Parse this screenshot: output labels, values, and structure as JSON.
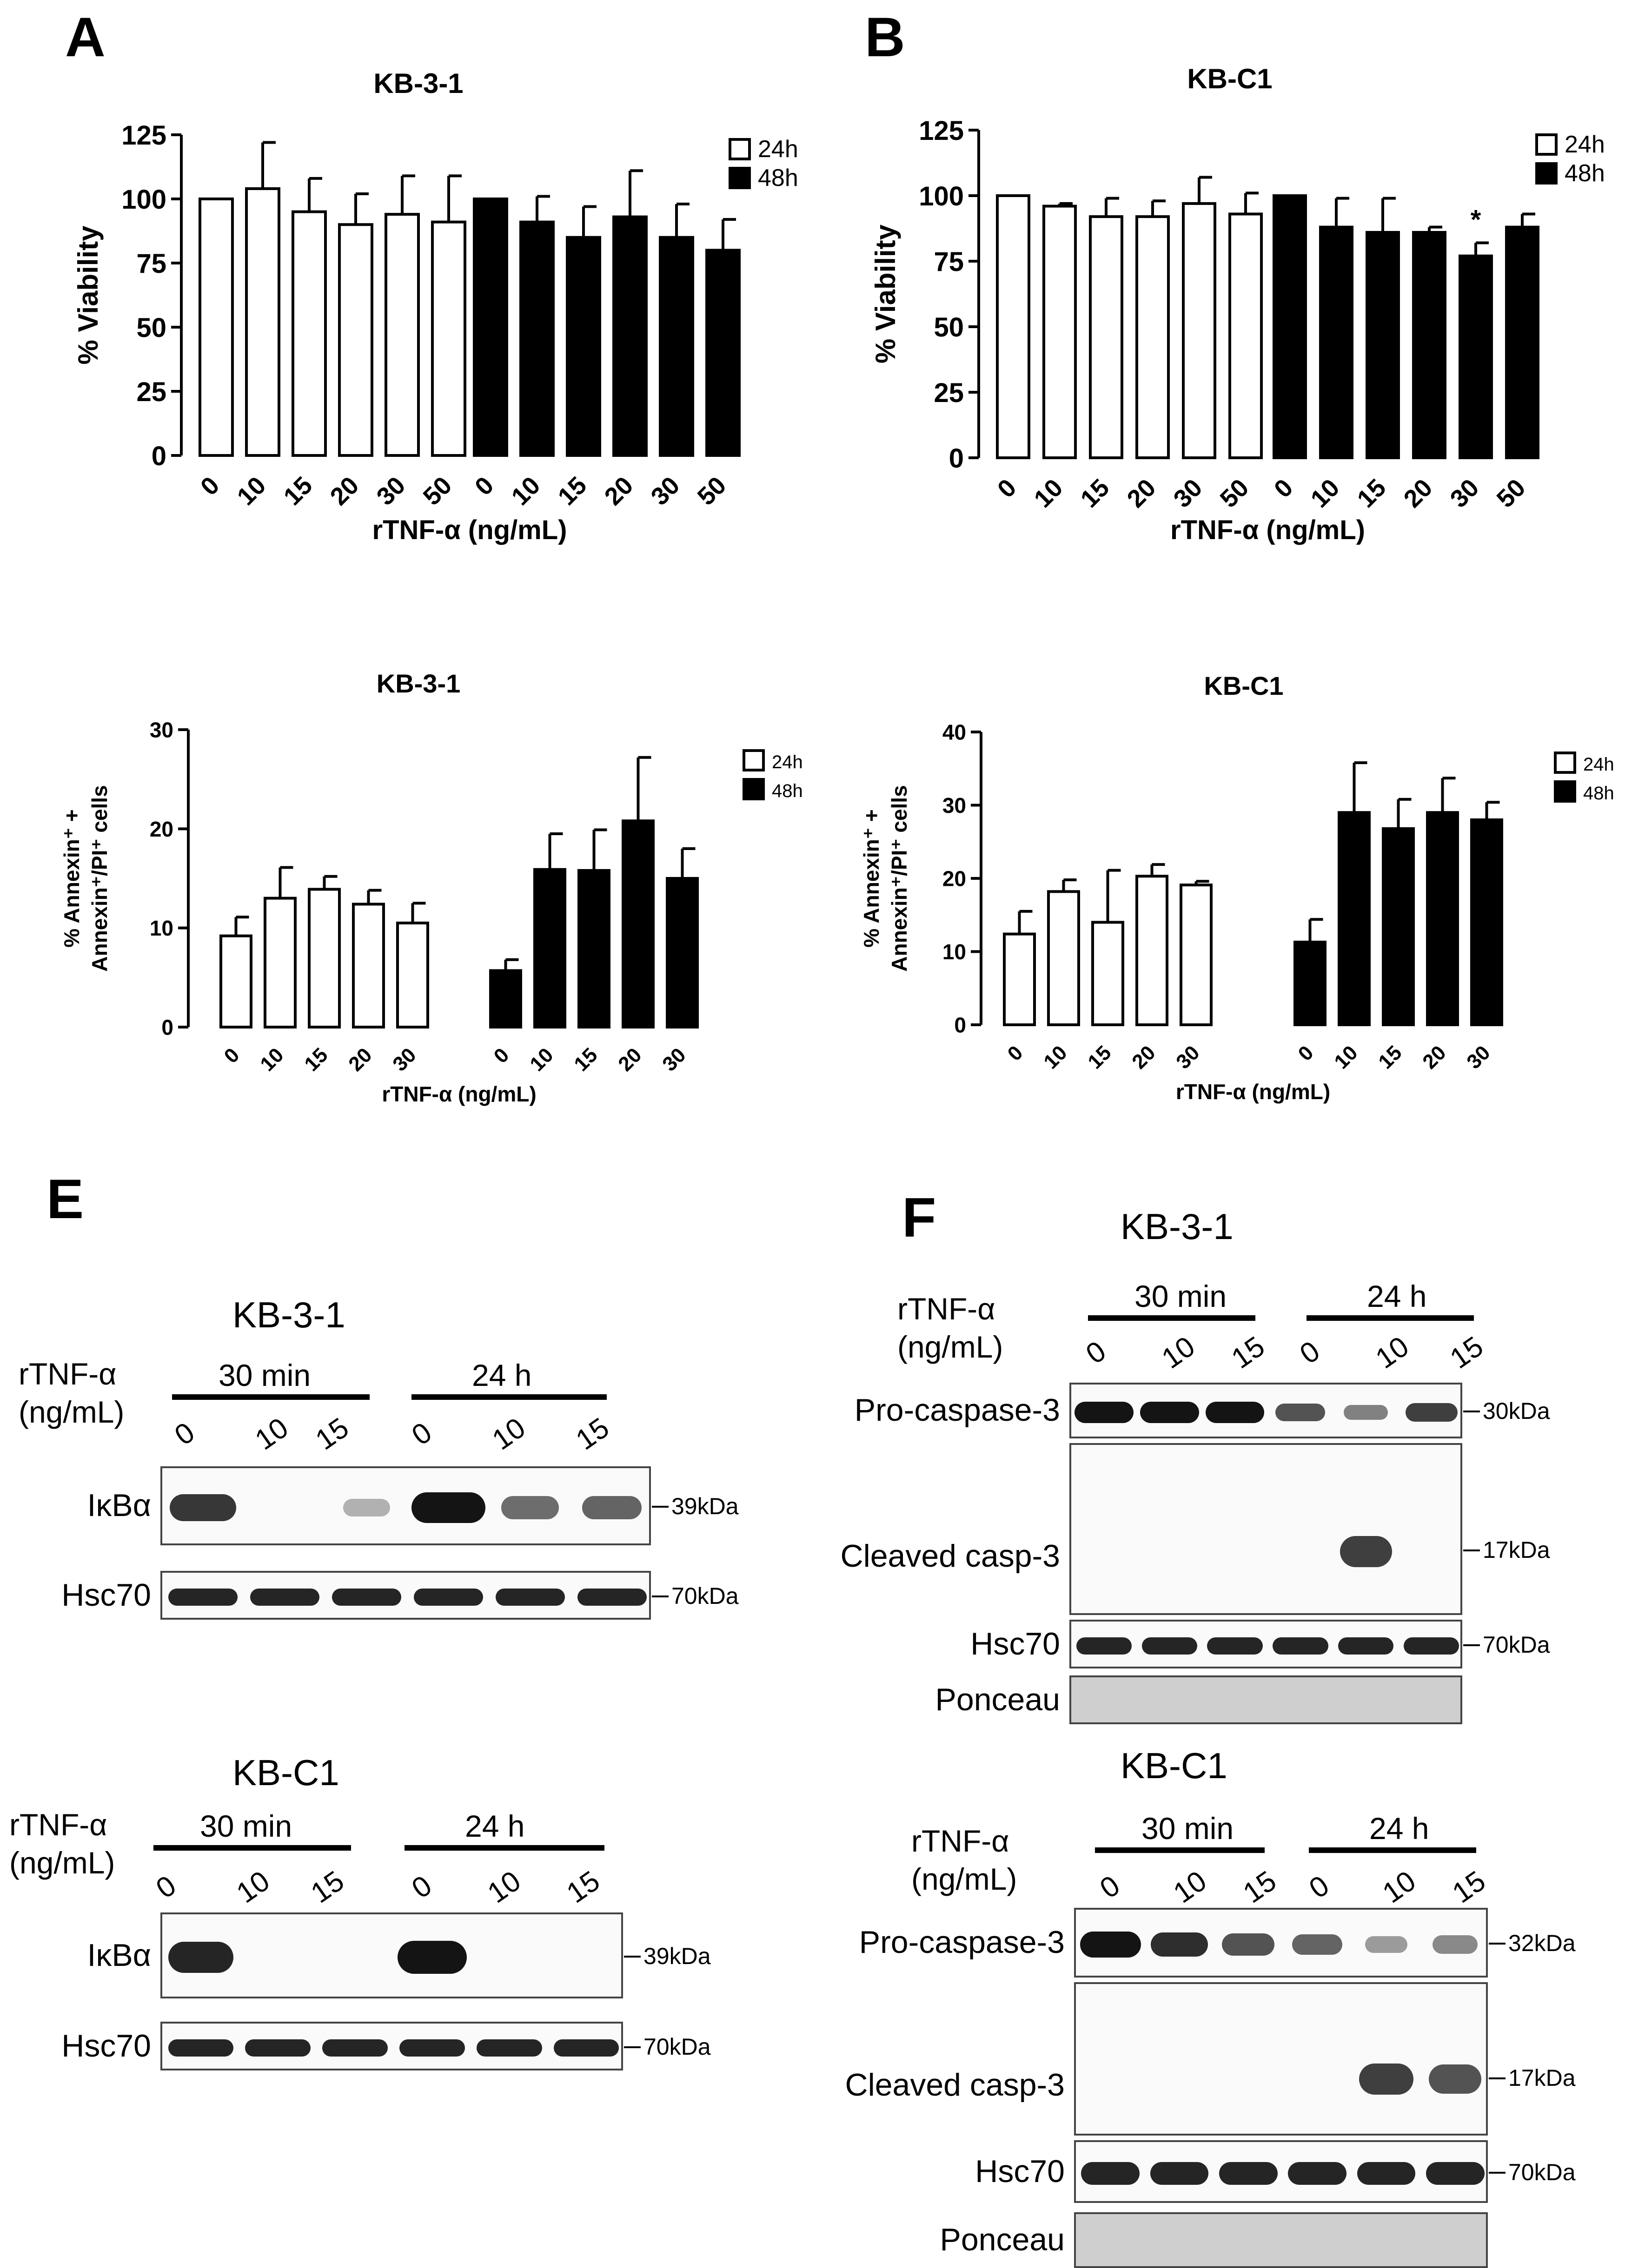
{
  "panels": [
    {
      "id": "A",
      "label": "A"
    },
    {
      "id": "B",
      "label": "B"
    },
    {
      "id": "E",
      "label": "E"
    },
    {
      "id": "F",
      "label": "F"
    }
  ],
  "chart_data": [
    {
      "type": "bar",
      "title": "KB-3-1",
      "ylabel": "% Viability",
      "xlabel": "rTNF-α (ng/mL)",
      "ylim": [
        0,
        125
      ],
      "yticks": [
        0,
        25,
        50,
        75,
        100,
        125
      ],
      "categories": [
        "0",
        "10",
        "15",
        "20",
        "30",
        "50"
      ],
      "legend_position": "top-right",
      "series": [
        {
          "name": "24h",
          "fill": "#ffffff",
          "values": [
            100,
            104,
            95,
            90,
            94,
            91
          ],
          "errors": [
            0,
            18,
            13,
            12,
            15,
            18
          ]
        },
        {
          "name": "48h",
          "fill": "#000000",
          "values": [
            100,
            91,
            85,
            93,
            85,
            80
          ],
          "errors": [
            0,
            10,
            12,
            18,
            13,
            12
          ]
        }
      ],
      "annotations": []
    },
    {
      "type": "bar",
      "title": "KB-C1",
      "ylabel": "% Viability",
      "xlabel": "rTNF-α (ng/mL)",
      "ylim": [
        0,
        125
      ],
      "yticks": [
        0,
        25,
        50,
        75,
        100,
        125
      ],
      "categories": [
        "0",
        "10",
        "15",
        "20",
        "30",
        "50"
      ],
      "legend_position": "top-right",
      "series": [
        {
          "name": "24h",
          "fill": "#ffffff",
          "values": [
            100,
            96,
            92,
            92,
            97,
            93
          ],
          "errors": [
            0,
            1,
            7,
            6,
            10,
            8
          ]
        },
        {
          "name": "48h",
          "fill": "#000000",
          "values": [
            100,
            88,
            86,
            86,
            77,
            88
          ],
          "errors": [
            0,
            11,
            13,
            2,
            5,
            5
          ]
        }
      ],
      "annotations": [
        {
          "text": "*",
          "series": 1,
          "index": 4
        }
      ]
    },
    {
      "type": "bar",
      "title": "KB-3-1",
      "ylabel_line1": "% Annexin⁺ +",
      "ylabel_line2": "Annexin⁺/PI⁺ cells",
      "xlabel": "rTNF-α (ng/mL)",
      "ylim": [
        0,
        30
      ],
      "yticks": [
        0,
        10,
        20,
        30
      ],
      "categories": [
        "0",
        "10",
        "15",
        "20",
        "30"
      ],
      "legend_position": "top-right",
      "series": [
        {
          "name": "24h",
          "fill": "#ffffff",
          "values": [
            9.2,
            13.0,
            13.9,
            12.4,
            10.5
          ],
          "errors": [
            1.9,
            3.1,
            1.3,
            1.4,
            2.0
          ]
        },
        {
          "name": "48h",
          "fill": "#000000",
          "values": [
            5.7,
            15.9,
            15.8,
            20.8,
            15.0
          ],
          "errors": [
            1.1,
            3.6,
            4.1,
            6.4,
            3.0
          ]
        }
      ],
      "annotations": []
    },
    {
      "type": "bar",
      "title": "KB-C1",
      "ylabel_line1": "% Annexin⁺ +",
      "ylabel_line2": "Annexin⁺/PI⁺ cells",
      "xlabel": "rTNF-α (ng/mL)",
      "ylim": [
        0,
        40
      ],
      "yticks": [
        0,
        10,
        20,
        30,
        40
      ],
      "categories": [
        "0",
        "10",
        "15",
        "20",
        "30"
      ],
      "legend_position": "top-right",
      "series": [
        {
          "name": "24h",
          "fill": "#ffffff",
          "values": [
            12.4,
            18.2,
            14.0,
            20.3,
            19.1
          ],
          "errors": [
            3.1,
            1.6,
            7.1,
            1.6,
            0.5
          ]
        },
        {
          "name": "48h",
          "fill": "#000000",
          "values": [
            11.3,
            29.0,
            26.8,
            29.0,
            28.0
          ],
          "errors": [
            3.1,
            6.8,
            4.0,
            4.7,
            2.4
          ]
        }
      ],
      "annotations": []
    }
  ],
  "blots": {
    "e_top": {
      "title": "KB-3-1",
      "treatment_line1": "rTNF-α",
      "treatment_line2": "(ng/mL)",
      "group1": "30 min",
      "group2": "24 h",
      "lanes": [
        "0",
        "10",
        "15",
        "0",
        "10",
        "15"
      ],
      "rows": [
        {
          "label": "IκBα",
          "kda": "39kDa",
          "intensity": [
            0.75,
            0,
            0.08,
            1.0,
            0.45,
            0.5
          ]
        },
        {
          "label": "Hsc70",
          "kda": "70kDa",
          "intensity": [
            0.85,
            0.85,
            0.85,
            0.85,
            0.85,
            0.85
          ]
        }
      ]
    },
    "e_bottom": {
      "title": "KB-C1",
      "treatment_line1": "rTNF-α",
      "treatment_line2": "(ng/mL)",
      "group1": "30 min",
      "group2": "24 h",
      "lanes": [
        "0",
        "10",
        "15",
        "0",
        "10",
        "15"
      ],
      "rows": [
        {
          "label": "IκBα",
          "kda": "39kDa",
          "intensity": [
            0.85,
            0,
            0,
            1.0,
            0,
            0
          ]
        },
        {
          "label": "Hsc70",
          "kda": "70kDa",
          "intensity": [
            0.85,
            0.85,
            0.85,
            0.85,
            0.85,
            0.85
          ]
        }
      ]
    },
    "f_top": {
      "title": "KB-3-1",
      "treatment_line1": "rTNF-α",
      "treatment_line2": "(ng/mL)",
      "group1": "30 min",
      "group2": "24 h",
      "lanes": [
        "0",
        "10",
        "15",
        "0",
        "10",
        "15"
      ],
      "rows": [
        {
          "label": "Pro-caspase-3",
          "kda": "30kDa",
          "intensity": [
            1.0,
            1.0,
            1.0,
            0.6,
            0.35,
            0.7
          ]
        },
        {
          "label": "Cleaved casp-3",
          "kda": "17kDa",
          "intensity": [
            0,
            0,
            0,
            0,
            0.7,
            0
          ]
        },
        {
          "label": "Hsc70",
          "kda": "70kDa",
          "intensity": [
            0.85,
            0.85,
            0.85,
            0.85,
            0.85,
            0.85
          ]
        },
        {
          "label": "Ponceau",
          "kda": "",
          "intensity": [
            0,
            0,
            0,
            0,
            0,
            0
          ]
        }
      ]
    },
    "f_bottom": {
      "title": "KB-C1",
      "treatment_line1": "rTNF-α",
      "treatment_line2": "(ng/mL)",
      "group1": "30 min",
      "group2": "24 h",
      "lanes": [
        "0",
        "10",
        "15",
        "0",
        "10",
        "15"
      ],
      "rows": [
        {
          "label": "Pro-caspase-3",
          "kda": "32kDa",
          "intensity": [
            0.95,
            0.8,
            0.6,
            0.5,
            0.2,
            0.3
          ]
        },
        {
          "label": "Cleaved casp-3",
          "kda": "17kDa",
          "intensity": [
            0,
            0,
            0,
            0,
            0.7,
            0.6
          ]
        },
        {
          "label": "Hsc70",
          "kda": "70kDa",
          "intensity": [
            0.85,
            0.85,
            0.85,
            0.85,
            0.85,
            0.85
          ]
        },
        {
          "label": "Ponceau",
          "kda": "",
          "intensity": [
            0,
            0,
            0,
            0,
            0,
            0
          ]
        }
      ]
    }
  }
}
